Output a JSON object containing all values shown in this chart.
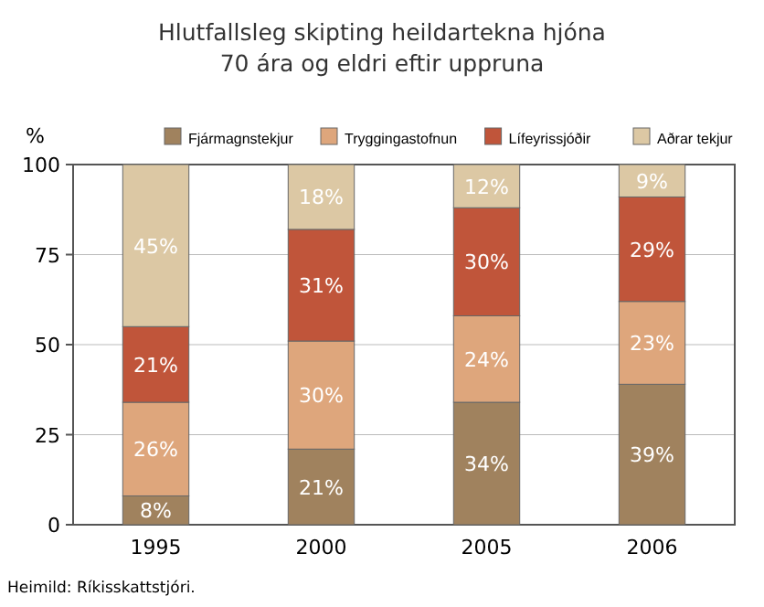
{
  "chart_data": {
    "type": "bar",
    "title": "Hlutfallsleg skipting heildartekna hjóna\n70 ára og eldri eftir uppruna",
    "ylabel": "%",
    "categories": [
      "1995",
      "2000",
      "2005",
      "2006"
    ],
    "stacked": true,
    "series": [
      {
        "name": "Fjármagnstekjur",
        "color": "#a0825e",
        "values": [
          8,
          21,
          34,
          39
        ],
        "value_labels": [
          "8%",
          "21%",
          "34%",
          "39%"
        ]
      },
      {
        "name": "Tryggingastofnun",
        "color": "#dea67c",
        "values": [
          26,
          30,
          24,
          23
        ],
        "value_labels": [
          "26%",
          "30%",
          "24%",
          "23%"
        ]
      },
      {
        "name": "Lífeyrissjóðir",
        "color": "#c0553a",
        "values": [
          21,
          31,
          30,
          29
        ],
        "value_labels": [
          "21%",
          "31%",
          "30%",
          "29%"
        ]
      },
      {
        "name": "Aðrar tekjur",
        "color": "#dcc8a4",
        "values": [
          45,
          18,
          12,
          9
        ],
        "value_labels": [
          "45%",
          "18%",
          "12%",
          "9%"
        ]
      }
    ],
    "ylim": [
      0,
      100
    ],
    "yticks": [
      0,
      25,
      50,
      75,
      100
    ],
    "grid": "y",
    "legend": "top",
    "annotations": [
      "Heimild: Ríkisskattstjóri."
    ]
  }
}
